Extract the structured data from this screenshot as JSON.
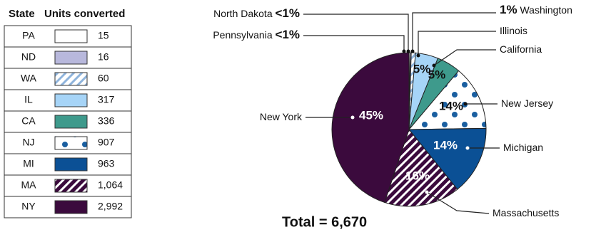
{
  "chart_data": {
    "type": "pie",
    "table_headers": [
      "State",
      "Units converted"
    ],
    "codes": [
      "PA",
      "ND",
      "WA",
      "IL",
      "CA",
      "NJ",
      "MI",
      "MA",
      "NY"
    ],
    "categories": [
      "Pennsylvania",
      "North Dakota",
      "Washington",
      "Illinois",
      "California",
      "New Jersey",
      "Michigan",
      "Massachusetts",
      "New York"
    ],
    "values": [
      15,
      16,
      60,
      317,
      336,
      907,
      963,
      1064,
      2992
    ],
    "value_labels": [
      "15",
      "16",
      "60",
      "317",
      "336",
      "907",
      "963",
      "1,064",
      "2,992"
    ],
    "percent_labels": [
      "<1%",
      "<1%",
      "1%",
      "5%",
      "5%",
      "14%",
      "14%",
      "16%",
      "45%"
    ],
    "colors": [
      "#ffffff",
      "#b8b8dc",
      "#ffffff",
      "#a6d4f7",
      "#3e9a8c",
      "#ffffff",
      "#0b5095",
      "#3b0a3d",
      "#3b0a3d"
    ],
    "patterns": [
      null,
      null,
      "hatch",
      null,
      null,
      "dots",
      null,
      "hatch",
      null
    ],
    "pattern_colors": [
      null,
      null,
      "#8fb4dc",
      null,
      null,
      "#1a5fa0",
      null,
      "#ffffff",
      null
    ],
    "total_text": "Total = 6,670"
  }
}
